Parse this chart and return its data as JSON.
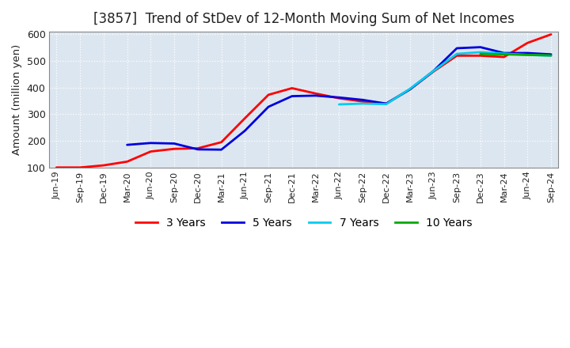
{
  "title": "[3857]  Trend of StDev of 12-Month Moving Sum of Net Incomes",
  "ylabel": "Amount (million yen)",
  "background_color": "#ffffff",
  "plot_bg_color": "#dce6f0",
  "grid_color": "#ffffff",
  "ylim": [
    100,
    610
  ],
  "yticks": [
    100,
    200,
    300,
    400,
    500,
    600
  ],
  "x_labels": [
    "Jun-19",
    "Sep-19",
    "Dec-19",
    "Mar-20",
    "Jun-20",
    "Sep-20",
    "Dec-20",
    "Mar-21",
    "Jun-21",
    "Sep-21",
    "Dec-21",
    "Mar-22",
    "Jun-22",
    "Sep-22",
    "Dec-22",
    "Mar-23",
    "Jun-23",
    "Sep-23",
    "Dec-23",
    "Mar-24",
    "Jun-24",
    "Sep-24"
  ],
  "series": {
    "3 Years": {
      "color": "#ff0000",
      "linewidth": 2.0,
      "data": [
        100,
        100,
        108,
        122,
        160,
        170,
        172,
        195,
        285,
        373,
        398,
        378,
        360,
        348,
        340,
        393,
        460,
        520,
        520,
        515,
        568,
        600
      ]
    },
    "5 Years": {
      "color": "#0000dd",
      "linewidth": 2.0,
      "data": [
        null,
        null,
        null,
        185,
        192,
        190,
        168,
        167,
        238,
        328,
        368,
        370,
        363,
        354,
        340,
        393,
        462,
        548,
        552,
        530,
        530,
        525
      ]
    },
    "7 Years": {
      "color": "#00ccee",
      "linewidth": 2.0,
      "data": [
        null,
        null,
        null,
        null,
        null,
        null,
        null,
        null,
        null,
        null,
        null,
        null,
        337,
        340,
        338,
        395,
        462,
        527,
        533,
        528,
        523,
        520
      ]
    },
    "10 Years": {
      "color": "#00aa00",
      "linewidth": 2.0,
      "data": [
        null,
        null,
        null,
        null,
        null,
        null,
        null,
        null,
        null,
        null,
        null,
        null,
        null,
        null,
        null,
        null,
        null,
        null,
        527,
        525,
        523,
        521
      ]
    }
  },
  "legend": {
    "labels": [
      "3 Years",
      "5 Years",
      "7 Years",
      "10 Years"
    ],
    "colors": [
      "#ff0000",
      "#0000dd",
      "#00ccee",
      "#00aa00"
    ]
  }
}
